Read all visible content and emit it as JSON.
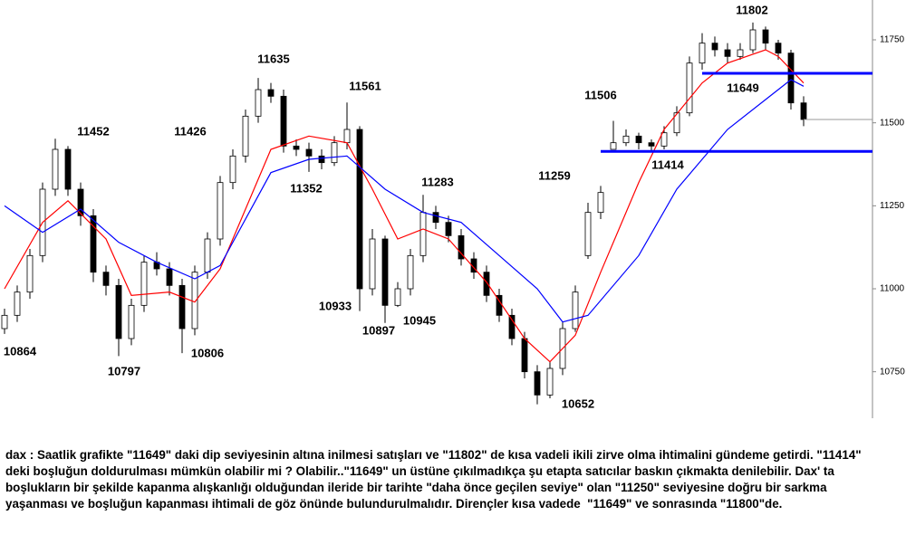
{
  "chart_data": {
    "type": "candlestick",
    "ylim": [
      10610,
      11870
    ],
    "yticks": [
      10750,
      11000,
      11250,
      11500,
      11750
    ],
    "xlim": [
      -0.5,
      63.5
    ],
    "up_color": "#ffffff",
    "down_color": "#000000",
    "open": [
      10880,
      10920,
      10990,
      11100,
      11300,
      11420,
      11300,
      11220,
      11050,
      11010,
      10850,
      10950,
      11080,
      11060,
      11010,
      10880,
      11050,
      11150,
      11320,
      11400,
      11520,
      11600,
      11580,
      11430,
      11420,
      11400,
      11380,
      11440,
      11480,
      11000,
      11150,
      10950,
      11000,
      11100,
      11230,
      11200,
      11160,
      11090,
      11050,
      10980,
      10920,
      10850,
      10750,
      10680,
      10760,
      10880,
      11100,
      11230,
      11420,
      11440,
      11460,
      11440,
      11430,
      11470,
      11530,
      11680,
      11740,
      11720,
      11700,
      11720,
      11780,
      11740,
      11710,
      11560
    ],
    "high": [
      10940,
      11010,
      11120,
      11320,
      11452,
      11430,
      11320,
      11240,
      11070,
      11030,
      10970,
      11100,
      11110,
      11080,
      11030,
      11070,
      11170,
      11340,
      11420,
      11540,
      11635,
      11620,
      11600,
      11450,
      11440,
      11420,
      11460,
      11561,
      11490,
      11180,
      11160,
      11020,
      11120,
      11283,
      11250,
      11220,
      11180,
      11110,
      11070,
      11000,
      10940,
      10870,
      10770,
      10780,
      10900,
      11010,
      11259,
      11310,
      11506,
      11480,
      11470,
      11450,
      11490,
      11550,
      11700,
      11770,
      11760,
      11740,
      11740,
      11802,
      11790,
      11750,
      11720,
      11580
    ],
    "low": [
      10864,
      10900,
      10970,
      11080,
      11280,
      11280,
      11190,
      11020,
      10980,
      10797,
      10830,
      10930,
      11040,
      10980,
      10806,
      10860,
      11030,
      11130,
      11300,
      11380,
      11500,
      11560,
      11410,
      11400,
      11352,
      11360,
      11370,
      11420,
      10933,
      10980,
      10897,
      10945,
      10980,
      11080,
      11180,
      11140,
      11070,
      11030,
      10960,
      10900,
      10830,
      10730,
      10652,
      10670,
      10740,
      10870,
      11090,
      11210,
      11420,
      11430,
      11420,
      11414,
      11420,
      11460,
      11520,
      11660,
      11700,
      11680,
      11690,
      11710,
      11720,
      11690,
      11540,
      11490
    ],
    "close": [
      10920,
      10990,
      11100,
      11300,
      11420,
      11300,
      11220,
      11050,
      11010,
      10850,
      10950,
      11080,
      11060,
      11010,
      10880,
      11050,
      11150,
      11320,
      11400,
      11520,
      11600,
      11580,
      11430,
      11420,
      11400,
      11380,
      11440,
      11480,
      11000,
      11150,
      10950,
      11000,
      11100,
      11230,
      11200,
      11160,
      11090,
      11050,
      10980,
      10920,
      10850,
      10750,
      10680,
      10760,
      10880,
      10990,
      11230,
      11290,
      11440,
      11460,
      11440,
      11430,
      11470,
      11530,
      11680,
      11740,
      11720,
      11700,
      11720,
      11780,
      11740,
      11710,
      11560,
      11510
    ],
    "series": [
      {
        "color": "#ff0000",
        "x": [
          0,
          3,
          5,
          8,
          10,
          13,
          15,
          17,
          21,
          24,
          27,
          29,
          31,
          33,
          35,
          38,
          41,
          43,
          45,
          47,
          50,
          52,
          55,
          57,
          60,
          61,
          63
        ],
        "values": [
          11000,
          11200,
          11265,
          11150,
          10980,
          10990,
          10960,
          11060,
          11420,
          11460,
          11440,
          11300,
          11150,
          11180,
          11150,
          11020,
          10850,
          10780,
          10860,
          11050,
          11320,
          11480,
          11620,
          11680,
          11720,
          11700,
          11620
        ]
      },
      {
        "color": "#0000ff",
        "x": [
          0,
          3,
          6,
          9,
          12,
          15,
          17,
          21,
          24,
          27,
          30,
          33,
          36,
          39,
          42,
          44,
          46,
          50,
          53,
          57,
          60,
          62,
          63
        ],
        "values": [
          11250,
          11170,
          11240,
          11140,
          11080,
          11030,
          11070,
          11350,
          11390,
          11400,
          11300,
          11230,
          11200,
          11100,
          11000,
          10900,
          10920,
          11100,
          11300,
          11480,
          11570,
          11630,
          11610
        ]
      }
    ],
    "hlines": [
      {
        "value": 11649,
        "color": "#0000ff",
        "from": 55
      },
      {
        "value": 11414,
        "color": "#0000ff",
        "from": 47
      }
    ],
    "price_labels": [
      "11802",
      "11635",
      "11561",
      "11506",
      "11649",
      "11452",
      "11426",
      "11352",
      "11283",
      "11259",
      "11414",
      "10933",
      "10897",
      "10945",
      "10864",
      "10797",
      "10806",
      "10652"
    ]
  },
  "text": {
    "paragraph": "dax : Saatlik grafikte \"11649\" daki dip seviyesinin altına inilmesi satışları ve \"11802\" de kısa vadeli ikili zirve olma ihtimalini gündeme getirdi. \"11414\" deki boşluğun doldurulması mümkün olabilir mi ? Olabilir..\"11649\" un üstüne çıkılmadıkça şu etapta satıcılar baskın çıkmakta denilebilir. Dax' ta boşlukların bir şekilde kapanma alışkanlığı olduğundan ileride bir tarihte \"daha önce geçilen seviye\" olan \"11250\" seviyesine doğru bir sarkma yaşanması ve boşluğun kapanması ihtimali de göz önünde bulundurulmalıdır. Dirençler kısa vadede  \"11649\" ve sonrasında \"11800\"de."
  }
}
